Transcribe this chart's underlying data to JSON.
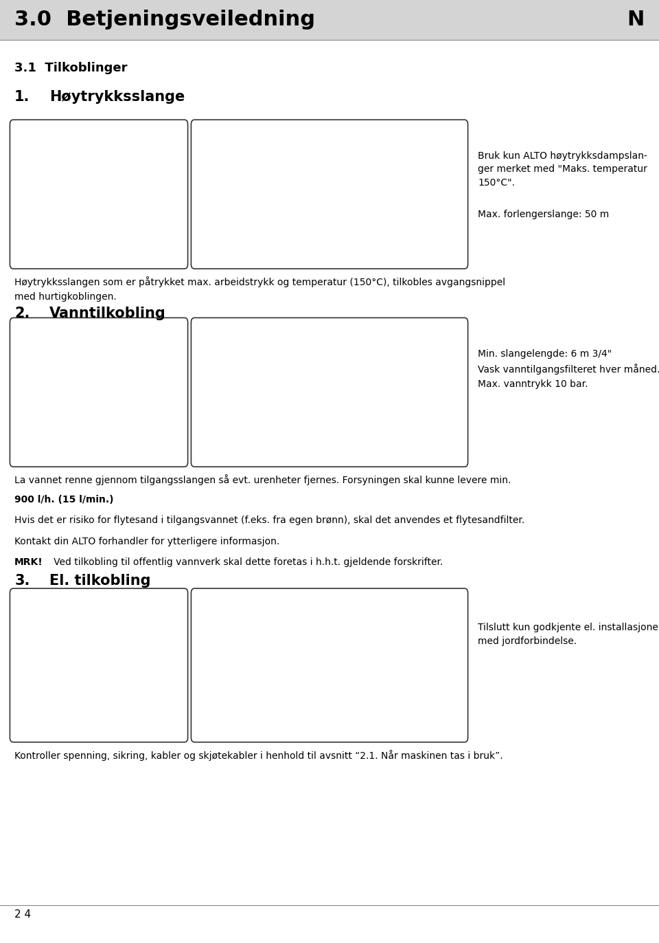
{
  "bg_color": "#ffffff",
  "header_bg": "#d4d4d4",
  "header_text": "3.0  Betjeningsveiledning",
  "header_right": "N",
  "header_fontsize": 22,
  "page_number": "2 4",
  "sec31_label": "3.1  Tilkoblinger",
  "h1_number": "1.",
  "h1_title": "Høytrykksslange",
  "h2_number": "2.",
  "h2_title": "Vanntilkobling",
  "h3_number": "3.",
  "h3_title": "El. tilkobling",
  "side_text_1a": "Bruk kun ALTO høytrykksdampslan-\nger merket med \"Maks. temperatur\n150°C\".",
  "side_text_1b": "Max. forlengerslange: 50 m",
  "side_text_2": "Min. slangelengde: 6 m 3/4\"\nVask vanntilgangsfilteret hver måned.\nMax. vanntrykk 10 bar.",
  "side_text_3": "Tilslutt kun godkjente el. installasjoner\nmed jordforbindelse.",
  "para1_line1": "Høytrykksslangen som er påtrykket max. arbeidstrykk og temperatur (150°C), tilkobles avgangsnippel",
  "para1_line2": "med hurtigkoblingen.",
  "body_line1": "La vannet renne gjennom tilgangsslangen så evt. urenheter fjernes. Forsyningen skal kunne levere min.",
  "body_line2": "900 l/h. (15 l/min.)",
  "body_line3": "Hvis det er risiko for flytesand i tilgangsvannet (f.eks. fra egen brønn), skal det anvendes et flytesandfilter.",
  "body_line4": "Kontakt din ALTO forhandler for ytterligere informasjon.",
  "body_line5_bold": "MRK!",
  "body_line5_rest": "   Ved tilkobling til offentlig vannverk skal dette foretas i h.h.t. gjeldende forskrifter.",
  "final_para": "Kontroller spenning, sikring, kabler og skjøtekabler i henhold til avsnitt “2.1. Når maskinen tas i bruk”."
}
